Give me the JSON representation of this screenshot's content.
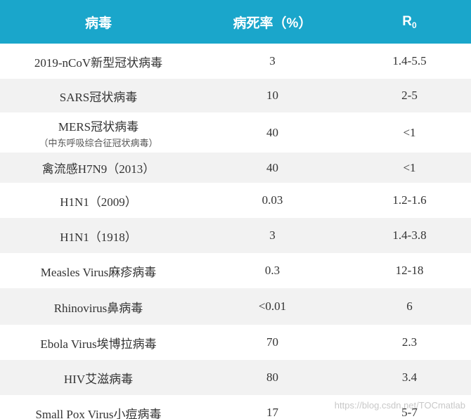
{
  "header": {
    "columns": [
      "病毒",
      "病死率（%）",
      "R"
    ],
    "r_subscript": "0"
  },
  "rows": [
    {
      "name": "2019-nCoV新型冠状病毒",
      "fatality": "3",
      "r0": "1.4-5.5"
    },
    {
      "name": "SARS冠状病毒",
      "fatality": "10",
      "r0": "2-5"
    },
    {
      "name": "MERS冠状病毒",
      "note": "（中东呼吸综合征冠状病毒）",
      "fatality": "40",
      "r0": "<1"
    },
    {
      "name": "禽流感H7N9（2013）",
      "fatality": "40",
      "r0": "<1"
    },
    {
      "name": "H1N1（2009）",
      "fatality": "0.03",
      "r0": "1.2-1.6"
    },
    {
      "name": "H1N1（1918）",
      "fatality": "3",
      "r0": "1.4-3.8"
    },
    {
      "name": "Measles Virus麻疹病毒",
      "fatality": "0.3",
      "r0": "12-18"
    },
    {
      "name": "Rhinovirus鼻病毒",
      "fatality": "<0.01",
      "r0": "6"
    },
    {
      "name": "Ebola Virus埃博拉病毒",
      "fatality": "70",
      "r0": "2.3"
    },
    {
      "name": "HIV艾滋病毒",
      "fatality": "80",
      "r0": "3.4"
    },
    {
      "name": "Small Pox Virus小痘病毒",
      "fatality": "17",
      "r0": "5-7"
    }
  ],
  "watermark": "https://blog.csdn.net/TOCmatlab"
}
